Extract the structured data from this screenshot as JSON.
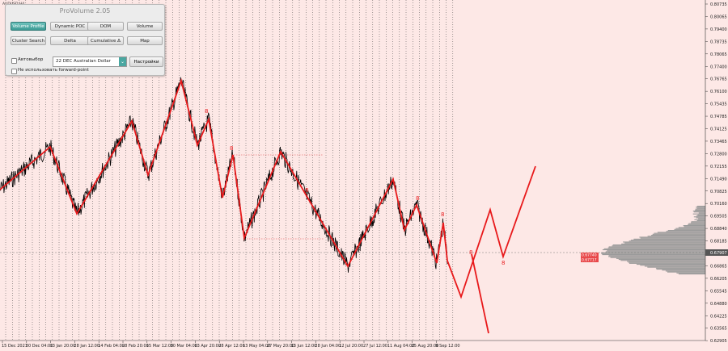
{
  "symbol": "AUDUSD,H4",
  "panel": {
    "title": "ProVolume 2.05",
    "buttons_row1": [
      "Volume Profile",
      "Dynamic POC",
      "DOM",
      "Volume"
    ],
    "buttons_row2": [
      "Cluster Search",
      "Delta",
      "Cumulative Δ",
      "Map"
    ],
    "auto_label": "Автовыбор",
    "instrument_value": "22 DEC Australian Dollar",
    "settings_label": "Настройки",
    "forward_label": "Не использовать forward-point"
  },
  "price_axis": [
    "0.80735",
    "0.80065",
    "0.79400",
    "0.78735",
    "0.78065",
    "0.77400",
    "0.76765",
    "0.76100",
    "0.75435",
    "0.74785",
    "0.74125",
    "0.73465",
    "0.72800",
    "0.72155",
    "0.71490",
    "0.70825",
    "0.70160",
    "0.69505",
    "0.68840",
    "0.68185",
    "0.67907",
    "0.66865",
    "0.66205",
    "0.65545",
    "0.64880",
    "0.64225",
    "0.63565",
    "0.62905"
  ],
  "current_price": "0.67907",
  "price_tags": [
    "0.67740",
    "0.67717"
  ],
  "time_axis": [
    "15 Dec 2021",
    "30 Dec 04:00",
    "13 Jan 20:00",
    "28 Jan 12:00",
    "14 Feb 04:00",
    "28 Feb 20:00",
    "15 Mar 12:00",
    "30 Mar 04:00",
    "13 Apr 20:00",
    "28 Apr 12:00",
    "13 May 04:00",
    "27 May 20:00",
    "13 Jun 12:00",
    "28 Jun 04:00",
    "12 Jul 20:00",
    "27 Jul 12:00",
    "11 Aug 04:00",
    "25 Aug 20:00",
    "9 Sep 12:00"
  ],
  "wave_marks": [
    "8",
    "8",
    "8",
    "8",
    "8",
    "8",
    "8"
  ],
  "colors": {
    "background": "#fde8e6",
    "wave": "#e8191b",
    "price": "#000000",
    "grid": "#555555",
    "volume": "#9a9a9a",
    "accent": "#4aa7a1"
  }
}
